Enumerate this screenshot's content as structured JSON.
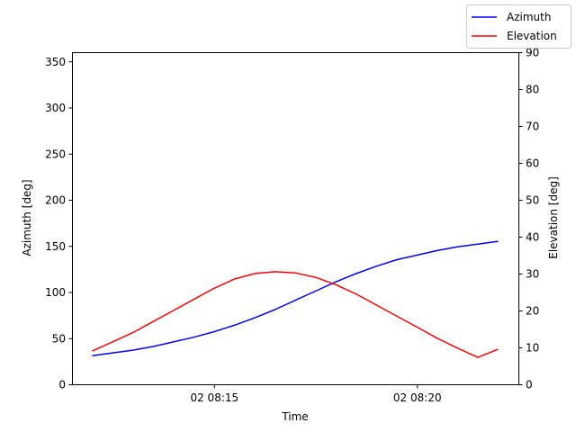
{
  "chart_data": {
    "type": "line",
    "title": "",
    "xlabel": "Time",
    "ylabel_left": "Azimuth [deg]",
    "ylabel_right": "Elevation [deg]",
    "x": [
      "08:12",
      "08:12:30",
      "08:13",
      "08:13:30",
      "08:14",
      "08:14:30",
      "08:15",
      "08:15:30",
      "08:16",
      "08:16:30",
      "08:17",
      "08:17:30",
      "08:18",
      "08:18:30",
      "08:19",
      "08:19:30",
      "08:20",
      "08:20:30",
      "08:21",
      "08:21:30",
      "08:22"
    ],
    "xlim": [
      "08:11:30",
      "08:22:30"
    ],
    "x_ticks": [
      {
        "value": "08:15",
        "label": "02 08:15"
      },
      {
        "value": "08:20",
        "label": "02 08:20"
      }
    ],
    "y_left": {
      "lim": [
        0,
        360
      ],
      "ticks": [
        0,
        50,
        100,
        150,
        200,
        250,
        300,
        350
      ]
    },
    "y_right": {
      "lim": [
        0,
        90
      ],
      "ticks": [
        0,
        10,
        20,
        30,
        40,
        50,
        60,
        70,
        80,
        90
      ]
    },
    "series": [
      {
        "name": "Azimuth",
        "axis": "left",
        "color": "#0000ff",
        "values": [
          31,
          34,
          37,
          41,
          46,
          51,
          57,
          64,
          72,
          81,
          91,
          101,
          111,
          120,
          128,
          135,
          140,
          145,
          149,
          152,
          155
        ]
      },
      {
        "name": "Elevation",
        "axis": "right",
        "color": "#ff0000",
        "values": [
          9,
          11.5,
          14,
          17,
          20,
          23,
          26,
          28.5,
          30,
          30.5,
          30.2,
          29,
          27,
          24.5,
          21.5,
          18.5,
          15.5,
          12.5,
          9.8,
          7.3,
          9.5
        ]
      }
    ],
    "legend": {
      "position": "top-right",
      "entries": [
        "Azimuth",
        "Elevation"
      ]
    },
    "grid": false
  }
}
